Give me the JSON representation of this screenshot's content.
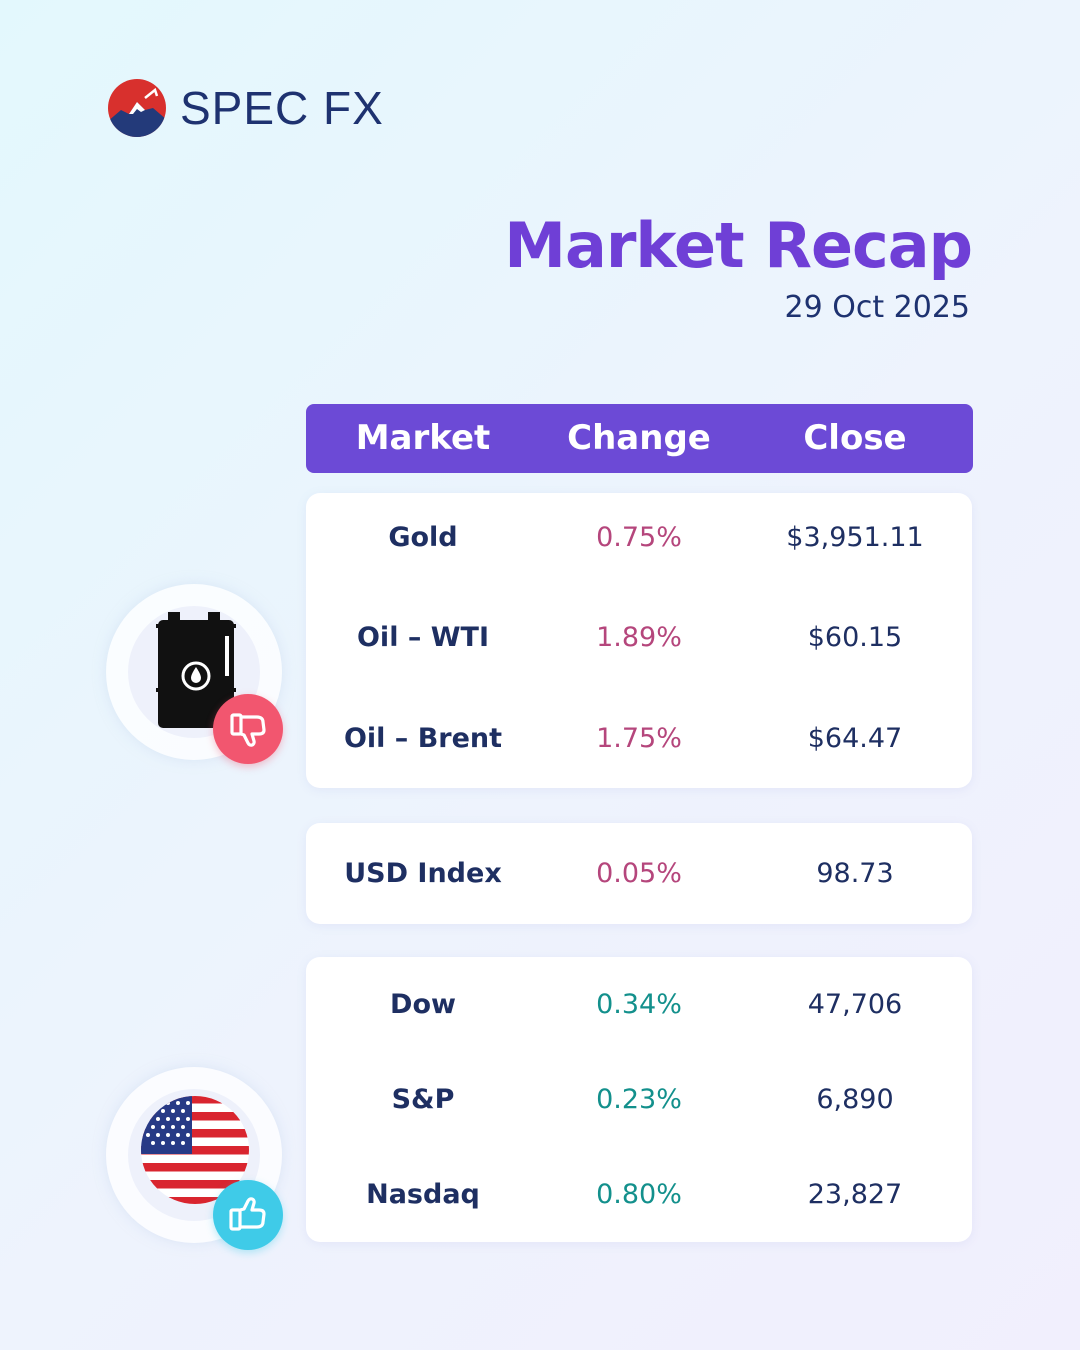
{
  "brand": {
    "name": "SPEC FX"
  },
  "header": {
    "title": "Market Recap",
    "date": "29 Oct 2025"
  },
  "table": {
    "columns": [
      "Market",
      "Change",
      "Close"
    ],
    "groups": [
      {
        "rows": [
          {
            "market": "Gold",
            "change": "0.75%",
            "close": "$3,951.11"
          },
          {
            "market": "Oil – WTI",
            "change": "1.89%",
            "close": "$60.15"
          },
          {
            "market": "Oil – Brent",
            "change": "1.75%",
            "close": "$64.47"
          }
        ]
      },
      {
        "rows": [
          {
            "market": "USD Index",
            "change": "0.05%",
            "close": "98.73"
          }
        ]
      },
      {
        "rows": [
          {
            "market": "Dow",
            "change": "0.34%",
            "close": "47,706"
          },
          {
            "market": "S&P",
            "change": "0.23%",
            "close": "6,890"
          },
          {
            "market": "Nasdaq",
            "change": "0.80%",
            "close": "23,827"
          }
        ]
      }
    ]
  },
  "icons": {
    "logo": "spec-fx-logo",
    "oil": "oil-barrel-icon",
    "down": "thumbs-down-icon",
    "flag": "us-flag-icon",
    "up": "thumbs-up-icon"
  },
  "colors": {
    "accent": "#6c4ad6",
    "title": "#6f3fd6",
    "navy": "#1e2f62",
    "negative": "#b5467c",
    "positive": "#13908c",
    "down_badge": "#f2566f",
    "up_badge": "#3fcbe8"
  }
}
